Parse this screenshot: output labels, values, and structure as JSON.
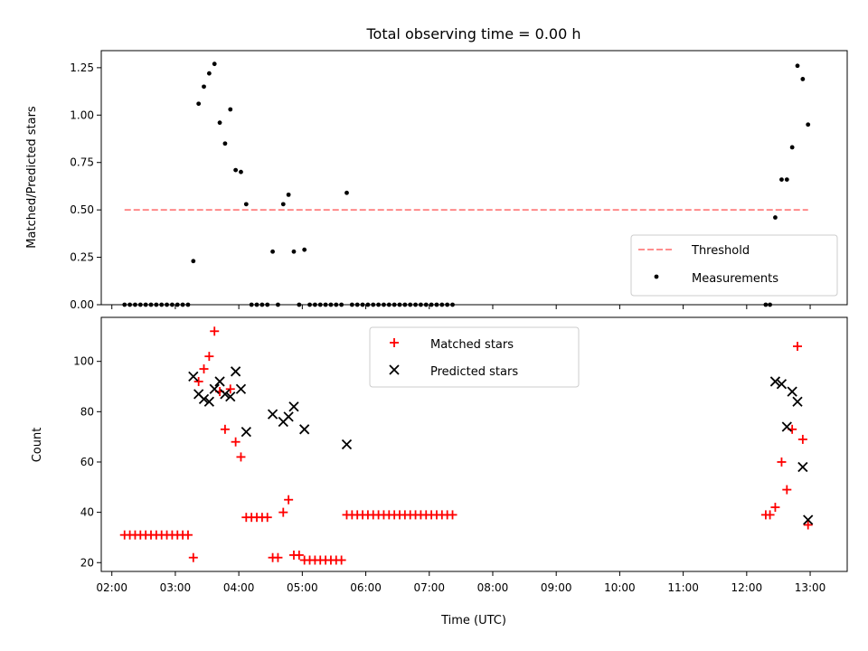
{
  "chart_data": [
    {
      "type": "scatter",
      "title": "Total observing time = 0.00 h",
      "xlabel": "",
      "ylabel": "Matched/Predicted stars",
      "xlim": [
        "01:50",
        "13:35"
      ],
      "ylim": [
        0,
        1.34
      ],
      "yticks": [
        "0.00",
        "0.25",
        "0.50",
        "0.75",
        "1.00",
        "1.25"
      ],
      "legend_position": "lower right",
      "series": [
        {
          "name": "Threshold",
          "kind": "line",
          "style": "dashed",
          "color": "#ff7f7f",
          "points": [
            [
              "02:12",
              0.5
            ],
            [
              "12:58",
              0.5
            ]
          ]
        },
        {
          "name": "Measurements",
          "kind": "scatter",
          "marker": "dot",
          "color": "#000000",
          "points": [
            [
              "02:12",
              0
            ],
            [
              "02:17",
              0
            ],
            [
              "02:22",
              0
            ],
            [
              "02:27",
              0
            ],
            [
              "02:32",
              0
            ],
            [
              "02:37",
              0
            ],
            [
              "02:42",
              0
            ],
            [
              "02:47",
              0
            ],
            [
              "02:52",
              0
            ],
            [
              "02:57",
              0
            ],
            [
              "03:02",
              0
            ],
            [
              "03:07",
              0
            ],
            [
              "03:12",
              0
            ],
            [
              "03:17",
              0.23
            ],
            [
              "03:22",
              1.06
            ],
            [
              "03:27",
              1.15
            ],
            [
              "03:32",
              1.22
            ],
            [
              "03:37",
              1.27
            ],
            [
              "03:42",
              0.96
            ],
            [
              "03:47",
              0.85
            ],
            [
              "03:52",
              1.03
            ],
            [
              "03:57",
              0.71
            ],
            [
              "04:02",
              0.7
            ],
            [
              "04:07",
              0.53
            ],
            [
              "04:12",
              0
            ],
            [
              "04:17",
              0
            ],
            [
              "04:22",
              0
            ],
            [
              "04:27",
              0
            ],
            [
              "04:32",
              0.28
            ],
            [
              "04:37",
              0
            ],
            [
              "04:42",
              0.53
            ],
            [
              "04:47",
              0.58
            ],
            [
              "04:52",
              0.28
            ],
            [
              "04:57",
              0
            ],
            [
              "05:02",
              0.29
            ],
            [
              "05:07",
              0
            ],
            [
              "05:12",
              0
            ],
            [
              "05:17",
              0
            ],
            [
              "05:22",
              0
            ],
            [
              "05:27",
              0
            ],
            [
              "05:32",
              0
            ],
            [
              "05:37",
              0
            ],
            [
              "05:42",
              0.59
            ],
            [
              "05:47",
              0
            ],
            [
              "05:52",
              0
            ],
            [
              "05:57",
              0
            ],
            [
              "06:02",
              0
            ],
            [
              "06:07",
              0
            ],
            [
              "06:12",
              0
            ],
            [
              "06:17",
              0
            ],
            [
              "06:22",
              0
            ],
            [
              "06:27",
              0
            ],
            [
              "06:32",
              0
            ],
            [
              "06:37",
              0
            ],
            [
              "06:42",
              0
            ],
            [
              "06:47",
              0
            ],
            [
              "06:52",
              0
            ],
            [
              "06:57",
              0
            ],
            [
              "07:02",
              0
            ],
            [
              "07:07",
              0
            ],
            [
              "07:12",
              0
            ],
            [
              "07:17",
              0
            ],
            [
              "07:22",
              0
            ],
            [
              "12:18",
              0
            ],
            [
              "12:22",
              0
            ],
            [
              "12:27",
              0.46
            ],
            [
              "12:33",
              0.66
            ],
            [
              "12:38",
              0.66
            ],
            [
              "12:43",
              0.83
            ],
            [
              "12:48",
              1.26
            ],
            [
              "12:53",
              1.19
            ],
            [
              "12:58",
              0.95
            ]
          ]
        }
      ]
    },
    {
      "type": "scatter",
      "title": "",
      "xlabel": "Time (UTC)",
      "ylabel": "Count",
      "xlim": [
        "01:50",
        "13:35"
      ],
      "ylim": [
        16.5,
        117.5
      ],
      "xticks": [
        "02:00",
        "03:00",
        "04:00",
        "05:00",
        "06:00",
        "07:00",
        "08:00",
        "09:00",
        "10:00",
        "11:00",
        "12:00",
        "13:00"
      ],
      "yticks": [
        "20",
        "40",
        "60",
        "80",
        "100"
      ],
      "legend_position": "upper center",
      "series": [
        {
          "name": "Matched stars",
          "kind": "scatter",
          "marker": "plus",
          "color": "#ff0000",
          "points": [
            [
              "02:12",
              31
            ],
            [
              "02:17",
              31
            ],
            [
              "02:22",
              31
            ],
            [
              "02:27",
              31
            ],
            [
              "02:32",
              31
            ],
            [
              "02:37",
              31
            ],
            [
              "02:42",
              31
            ],
            [
              "02:47",
              31
            ],
            [
              "02:52",
              31
            ],
            [
              "02:57",
              31
            ],
            [
              "03:02",
              31
            ],
            [
              "03:07",
              31
            ],
            [
              "03:12",
              31
            ],
            [
              "03:17",
              22
            ],
            [
              "03:22",
              92
            ],
            [
              "03:27",
              97
            ],
            [
              "03:32",
              102
            ],
            [
              "03:37",
              112
            ],
            [
              "03:42",
              88
            ],
            [
              "03:47",
              73
            ],
            [
              "03:52",
              89
            ],
            [
              "03:57",
              68
            ],
            [
              "04:02",
              62
            ],
            [
              "04:07",
              38
            ],
            [
              "04:12",
              38
            ],
            [
              "04:17",
              38
            ],
            [
              "04:22",
              38
            ],
            [
              "04:27",
              38
            ],
            [
              "04:32",
              22
            ],
            [
              "04:37",
              22
            ],
            [
              "04:42",
              40
            ],
            [
              "04:47",
              45
            ],
            [
              "04:52",
              23
            ],
            [
              "04:57",
              23
            ],
            [
              "05:02",
              21
            ],
            [
              "05:07",
              21
            ],
            [
              "05:12",
              21
            ],
            [
              "05:17",
              21
            ],
            [
              "05:22",
              21
            ],
            [
              "05:27",
              21
            ],
            [
              "05:32",
              21
            ],
            [
              "05:37",
              21
            ],
            [
              "05:42",
              39
            ],
            [
              "05:47",
              39
            ],
            [
              "05:52",
              39
            ],
            [
              "05:57",
              39
            ],
            [
              "06:02",
              39
            ],
            [
              "06:07",
              39
            ],
            [
              "06:12",
              39
            ],
            [
              "06:17",
              39
            ],
            [
              "06:22",
              39
            ],
            [
              "06:27",
              39
            ],
            [
              "06:32",
              39
            ],
            [
              "06:37",
              39
            ],
            [
              "06:42",
              39
            ],
            [
              "06:47",
              39
            ],
            [
              "06:52",
              39
            ],
            [
              "06:57",
              39
            ],
            [
              "07:02",
              39
            ],
            [
              "07:07",
              39
            ],
            [
              "07:12",
              39
            ],
            [
              "07:17",
              39
            ],
            [
              "07:22",
              39
            ],
            [
              "12:18",
              39
            ],
            [
              "12:22",
              39
            ],
            [
              "12:27",
              42
            ],
            [
              "12:33",
              60
            ],
            [
              "12:38",
              49
            ],
            [
              "12:43",
              73
            ],
            [
              "12:48",
              106
            ],
            [
              "12:53",
              69
            ],
            [
              "12:58",
              35
            ]
          ]
        },
        {
          "name": "Predicted stars",
          "kind": "scatter",
          "marker": "x",
          "color": "#000000",
          "points": [
            [
              "03:17",
              94
            ],
            [
              "03:22",
              87
            ],
            [
              "03:27",
              85
            ],
            [
              "03:32",
              84
            ],
            [
              "03:37",
              89
            ],
            [
              "03:42",
              92
            ],
            [
              "03:47",
              87
            ],
            [
              "03:52",
              86
            ],
            [
              "03:57",
              96
            ],
            [
              "04:02",
              89
            ],
            [
              "04:07",
              72
            ],
            [
              "04:32",
              79
            ],
            [
              "04:42",
              76
            ],
            [
              "04:47",
              78
            ],
            [
              "04:52",
              82
            ],
            [
              "05:02",
              73
            ],
            [
              "05:42",
              67
            ],
            [
              "12:27",
              92
            ],
            [
              "12:33",
              91
            ],
            [
              "12:38",
              74
            ],
            [
              "12:43",
              88
            ],
            [
              "12:48",
              84
            ],
            [
              "12:53",
              58
            ],
            [
              "12:58",
              37
            ]
          ]
        }
      ]
    }
  ]
}
